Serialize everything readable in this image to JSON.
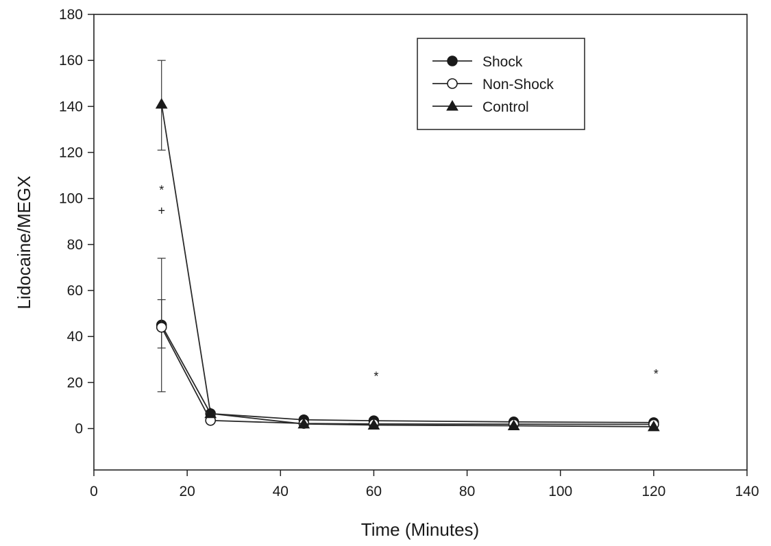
{
  "chart_data": {
    "type": "line",
    "title": "",
    "xlabel": "Time (Minutes)",
    "ylabel": "Lidocaine/MEGX",
    "xlim": [
      0,
      140
    ],
    "ylim": [
      -18,
      180
    ],
    "xticks": [
      "0",
      "20",
      "40",
      "60",
      "80",
      "100",
      "120",
      "140"
    ],
    "yticks": [
      "0",
      "20",
      "40",
      "60",
      "80",
      "100",
      "120",
      "140",
      "160",
      "180"
    ],
    "grid": false,
    "legend_position": "top-right",
    "series": [
      {
        "name": "Shock",
        "marker": "filled-circle",
        "x": [
          14.5,
          25,
          45,
          60,
          90,
          120
        ],
        "y": [
          45,
          6.5,
          3.8,
          3.4,
          2.9,
          2.6
        ],
        "error": [
          {
            "x": 14.5,
            "low": 16,
            "high": 74
          }
        ]
      },
      {
        "name": "Non-Shock",
        "marker": "open-circle",
        "x": [
          14.5,
          25,
          45,
          60,
          90,
          120
        ],
        "y": [
          44,
          3.5,
          2.2,
          2.0,
          1.9,
          1.8
        ],
        "error": [
          {
            "x": 14.5,
            "low": 35,
            "high": 56
          }
        ]
      },
      {
        "name": "Control",
        "marker": "filled-triangle",
        "x": [
          14.5,
          25,
          45,
          60,
          90,
          120
        ],
        "y": [
          141,
          6.5,
          2.0,
          1.5,
          1.2,
          0.8
        ],
        "error": [
          {
            "x": 14.5,
            "low": 121,
            "high": 160
          }
        ]
      }
    ],
    "annotations": [
      {
        "text": "*",
        "x": 14.5,
        "y": 104
      },
      {
        "text": "+",
        "x": 14.5,
        "y": 95
      },
      {
        "text": "*",
        "x": 60.5,
        "y": 23
      },
      {
        "text": "*",
        "x": 120.5,
        "y": 24
      }
    ]
  }
}
